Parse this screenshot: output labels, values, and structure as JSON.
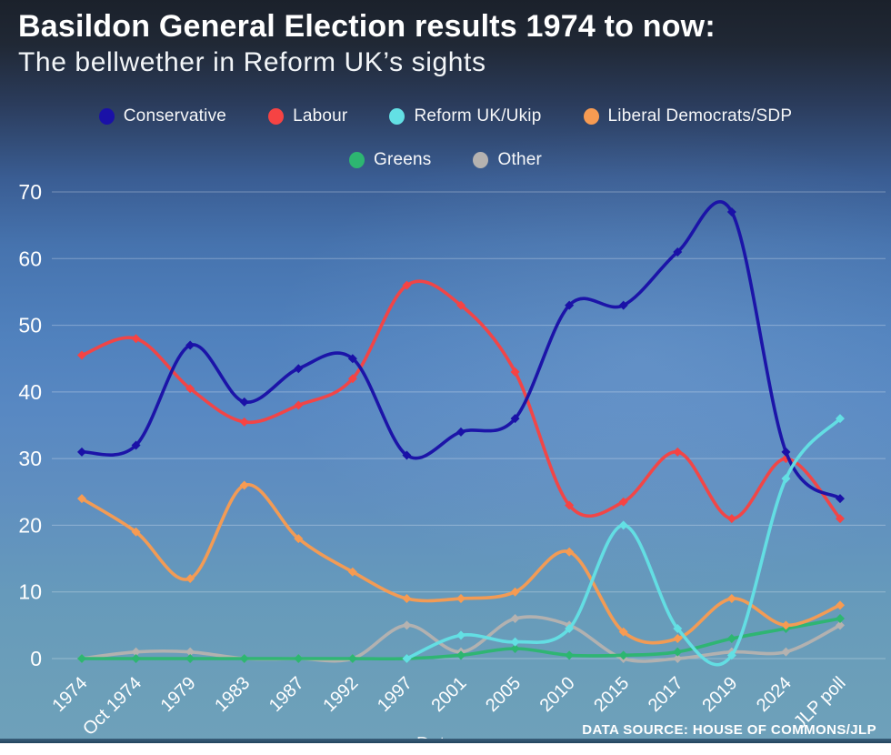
{
  "header": {
    "title": "Basildon General Election results 1974 to now:",
    "subtitle": "The bellwether in Reform UK’s sights"
  },
  "footer": {
    "source": "DATA SOURCE: HOUSE OF COMMONS/JLP",
    "xaxis_title": "Date"
  },
  "colors": {
    "background_top": "#1b212b",
    "background_mid": "#5081bd",
    "background_bottom": "#6ea1ba",
    "gridline": "rgba(255,255,255,0.30)",
    "tick_text": "#ffffff"
  },
  "chart_data": {
    "type": "line",
    "title": "Basildon General Election results 1974 to now",
    "xlabel": "Date",
    "ylabel": "",
    "ylim": [
      0,
      70
    ],
    "yticks": [
      0,
      10,
      20,
      30,
      40,
      50,
      60,
      70
    ],
    "grid": true,
    "legend_position": "top",
    "marker": "diamond",
    "categories": [
      "1974",
      "Oct 1974",
      "1979",
      "1983",
      "1987",
      "1992",
      "1997",
      "2001",
      "2005",
      "2010",
      "2015",
      "2017",
      "2019",
      "2024",
      "JLP poll"
    ],
    "series": [
      {
        "name": "Conservative",
        "color": "#1a11a7",
        "values": [
          31,
          32,
          47,
          38.5,
          43.5,
          45,
          30.5,
          34,
          36,
          53,
          53,
          61,
          67,
          31,
          24
        ]
      },
      {
        "name": "Labour",
        "color": "#f64343",
        "values": [
          45.5,
          48,
          40.5,
          35.5,
          38,
          42,
          56,
          53,
          43,
          23,
          23.5,
          31,
          21,
          30,
          21
        ]
      },
      {
        "name": "Reform UK/Ukip",
        "color": "#63e0e4",
        "values": [
          null,
          null,
          null,
          null,
          null,
          null,
          0,
          3.5,
          2.5,
          4.5,
          20,
          4.5,
          0.5,
          27,
          36
        ]
      },
      {
        "name": "Liberal Democrats/SDP",
        "color": "#f79b52",
        "values": [
          24,
          19,
          12,
          26,
          18,
          13,
          9,
          9,
          10,
          16,
          4,
          3,
          9,
          5,
          8
        ]
      },
      {
        "name": "Greens",
        "color": "#2db671",
        "values": [
          0,
          0,
          0,
          0,
          0,
          0,
          0,
          0.5,
          1.5,
          0.5,
          0.5,
          1,
          3,
          4.5,
          6
        ]
      },
      {
        "name": "Other",
        "color": "#b5b2b0",
        "values": [
          0,
          1,
          1,
          0,
          0,
          0,
          5,
          1,
          6,
          5,
          0,
          0,
          1,
          1,
          5
        ]
      }
    ]
  }
}
